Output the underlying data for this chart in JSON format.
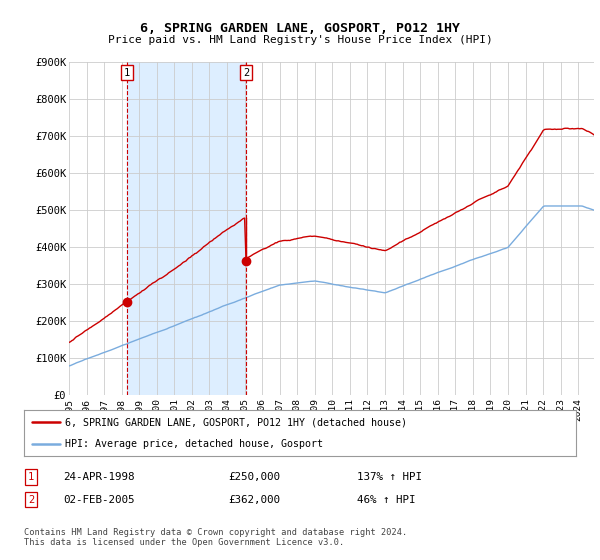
{
  "title": "6, SPRING GARDEN LANE, GOSPORT, PO12 1HY",
  "subtitle": "Price paid vs. HM Land Registry's House Price Index (HPI)",
  "legend_line1": "6, SPRING GARDEN LANE, GOSPORT, PO12 1HY (detached house)",
  "legend_line2": "HPI: Average price, detached house, Gosport",
  "table_rows": [
    {
      "num": "1",
      "date": "24-APR-1998",
      "price": "£250,000",
      "hpi": "137% ↑ HPI"
    },
    {
      "num": "2",
      "date": "02-FEB-2005",
      "price": "£362,000",
      "hpi": "46% ↑ HPI"
    }
  ],
  "footnote": "Contains HM Land Registry data © Crown copyright and database right 2024.\nThis data is licensed under the Open Government Licence v3.0.",
  "sale1_year": 1998.31,
  "sale1_price": 250000,
  "sale2_year": 2005.09,
  "sale2_price": 362000,
  "red_line_color": "#cc0000",
  "blue_line_color": "#7aacde",
  "vline_color": "#cc0000",
  "shade_color": "#ddeeff",
  "grid_color": "#cccccc",
  "background_color": "#ffffff",
  "ylim": [
    0,
    900000
  ],
  "xlim_start": 1995.0,
  "xlim_end": 2024.9,
  "xtick_years": [
    1995,
    1996,
    1997,
    1998,
    1999,
    2000,
    2001,
    2002,
    2003,
    2004,
    2005,
    2006,
    2007,
    2008,
    2009,
    2010,
    2011,
    2012,
    2013,
    2014,
    2015,
    2016,
    2017,
    2018,
    2019,
    2020,
    2021,
    2022,
    2023,
    2024
  ],
  "ytick_values": [
    0,
    100000,
    200000,
    300000,
    400000,
    500000,
    600000,
    700000,
    800000,
    900000
  ],
  "ytick_labels": [
    "£0",
    "£100K",
    "£200K",
    "£300K",
    "£400K",
    "£500K",
    "£600K",
    "£700K",
    "£800K",
    "£900K"
  ]
}
